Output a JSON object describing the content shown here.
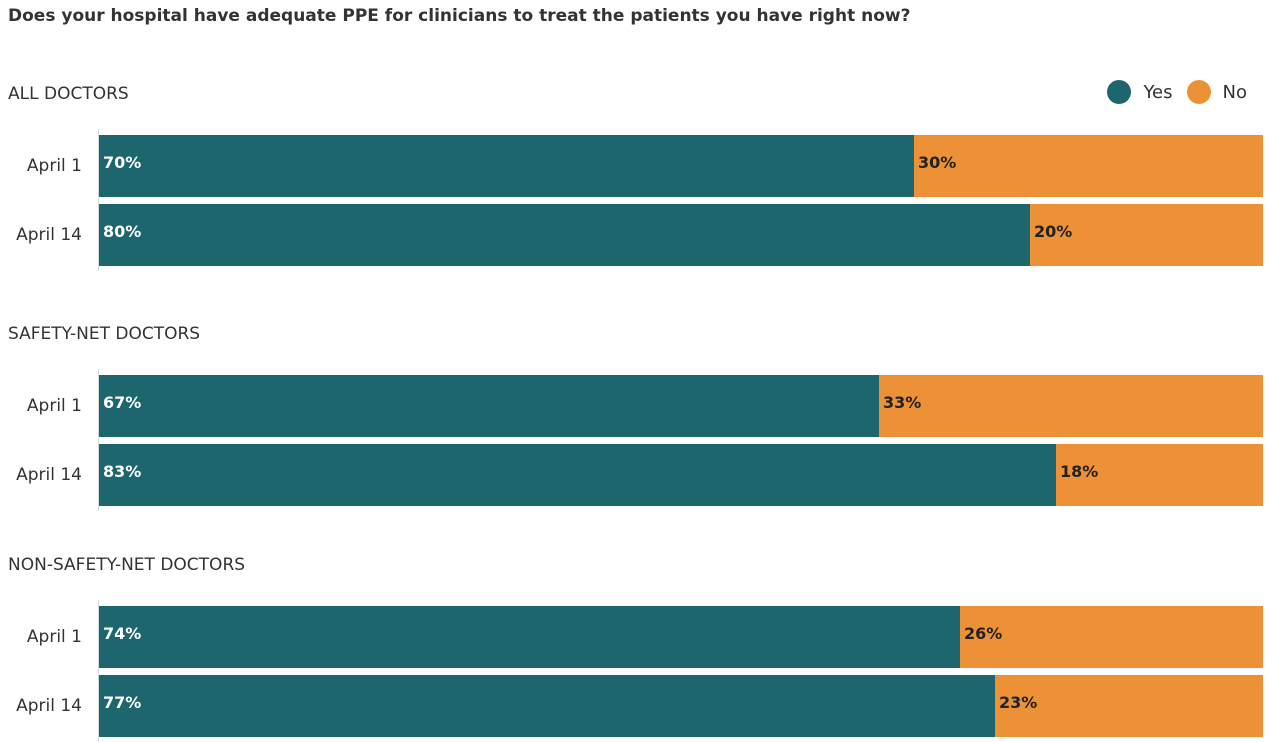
{
  "title": "Does your hospital have adequate PPE for clinicians to treat the patients you have right now?",
  "colors": {
    "yes": "#1d666d",
    "no": "#ec9135",
    "yes_text": "#ffffff",
    "no_text": "#222222"
  },
  "legend": [
    {
      "label": "Yes",
      "color": "#1d666d"
    },
    {
      "label": "No",
      "color": "#ec9135"
    }
  ],
  "chart_data": {
    "type": "bar",
    "stacked": true,
    "orientation": "horizontal",
    "percent": true,
    "title": "Does your hospital have adequate PPE for clinicians to treat the patients you have right now?",
    "legend_position": "top-right",
    "series_names": [
      "Yes",
      "No"
    ],
    "groups": [
      {
        "title": "ALL DOCTORS",
        "rows": [
          {
            "label": "April 1",
            "yes": 70,
            "no": 30,
            "yes_label": "70%",
            "no_label": "30%"
          },
          {
            "label": "April 14",
            "yes": 80,
            "no": 20,
            "yes_label": "80%",
            "no_label": "20%"
          }
        ]
      },
      {
        "title": "SAFETY-NET DOCTORS",
        "rows": [
          {
            "label": "April 1",
            "yes": 67,
            "no": 33,
            "yes_label": "67%",
            "no_label": "33%"
          },
          {
            "label": "April 14",
            "yes": 83,
            "no": 18,
            "yes_label": "83%",
            "no_label": "18%"
          }
        ]
      },
      {
        "title": "NON-SAFETY-NET DOCTORS",
        "rows": [
          {
            "label": "April 1",
            "yes": 74,
            "no": 26,
            "yes_label": "74%",
            "no_label": "26%"
          },
          {
            "label": "April 14",
            "yes": 77,
            "no": 23,
            "yes_label": "77%",
            "no_label": "23%"
          }
        ]
      }
    ]
  }
}
